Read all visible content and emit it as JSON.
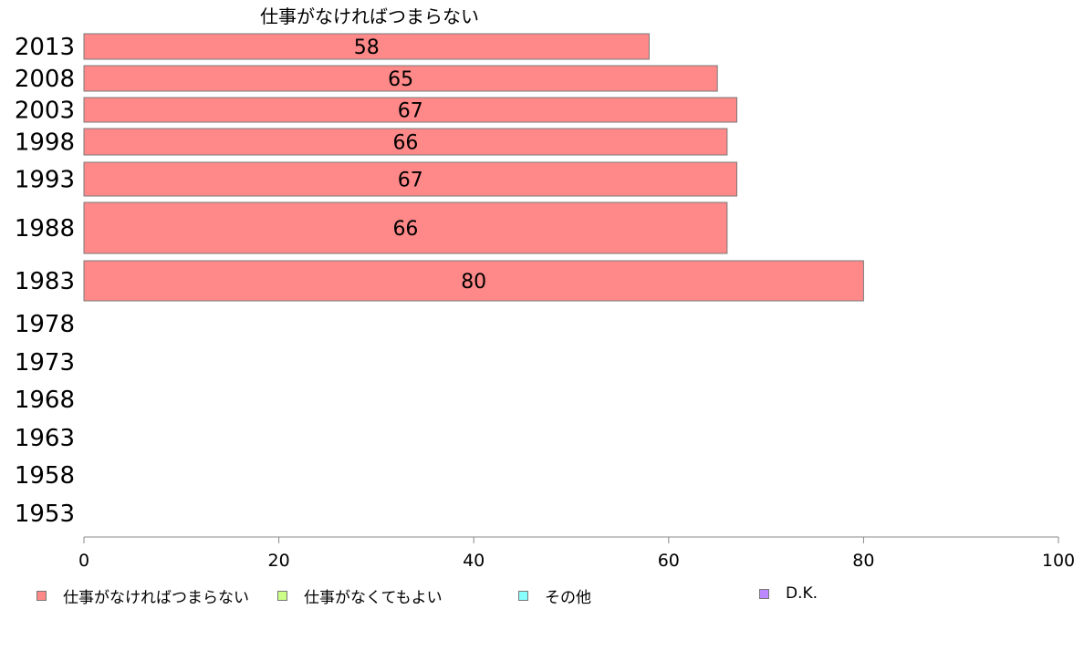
{
  "chart_data": {
    "type": "bar",
    "orientation": "horizontal",
    "title": "仕事がなければつまらない",
    "categories": [
      "2013",
      "2008",
      "2003",
      "1998",
      "1993",
      "1988",
      "1983",
      "1978",
      "1973",
      "1968",
      "1963",
      "1958",
      "1953"
    ],
    "series": [
      {
        "name": "仕事がなければつまらない",
        "color": "#ff8888",
        "values": [
          58,
          65,
          67,
          66,
          67,
          66,
          80,
          null,
          null,
          null,
          null,
          null,
          null
        ]
      }
    ],
    "xlim": [
      0,
      100
    ],
    "xticks": [
      0,
      20,
      40,
      60,
      80,
      100
    ],
    "grid": false,
    "legend_position": "bottom"
  },
  "legend": {
    "items": [
      {
        "label": "仕事がなければつまらない",
        "color": "#ff8888"
      },
      {
        "label": "仕事がなくてもよい",
        "color": "#ccff88"
      },
      {
        "label": "その他",
        "color": "#88ffff"
      },
      {
        "label": "D.K.",
        "color": "#bb88ff"
      }
    ]
  }
}
